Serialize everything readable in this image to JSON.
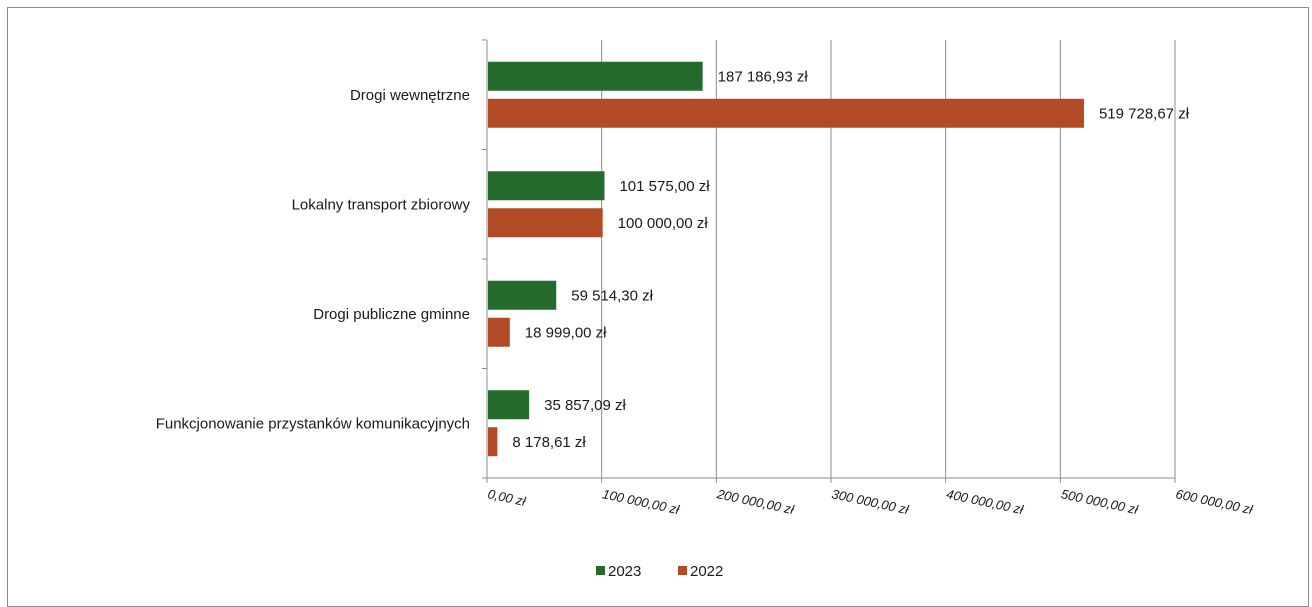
{
  "chart_data": {
    "type": "bar",
    "orientation": "horizontal",
    "categories": [
      "Drogi wewnętrzne",
      "Lokalny transport zbiorowy",
      "Drogi publiczne gminne",
      "Funkcjonowanie przystanków komunikacyjnych"
    ],
    "series": [
      {
        "name": "2023",
        "color": "#246b2c",
        "values": [
          187186.93,
          101575.0,
          59514.3,
          35857.09
        ],
        "labels": [
          "187 186,93 zł",
          "101 575,00 zł",
          "59 514,30 zł",
          "35 857,09 zł"
        ]
      },
      {
        "name": "2022",
        "color": "#b24a26",
        "values": [
          519728.67,
          100000.0,
          18999.0,
          8178.61
        ],
        "labels": [
          "519 728,67 zł",
          "100 000,00 zł",
          "18 999,00 zł",
          "8 178,61 zł"
        ]
      }
    ],
    "x_ticks": [
      0,
      100000,
      200000,
      300000,
      400000,
      500000,
      600000
    ],
    "x_tick_labels": [
      "0,00 zł",
      "100 000,00 zł",
      "200 000,00 zł",
      "300 000,00 zł",
      "400 000,00 zł",
      "500 000,00 zł",
      "600 000,00 zł"
    ],
    "xlim": [
      0,
      600000
    ],
    "grid": true,
    "legend_position": "bottom"
  }
}
